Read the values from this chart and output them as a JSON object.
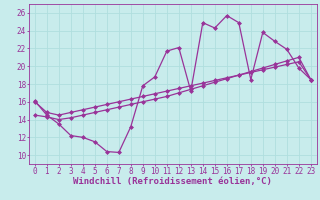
{
  "xlabel": "Windchill (Refroidissement éolien,°C)",
  "bg_color": "#c8ecec",
  "grid_color": "#b0dede",
  "line_color": "#993399",
  "marker": "D",
  "markersize": 2.0,
  "linewidth": 0.9,
  "xlim": [
    -0.5,
    23.5
  ],
  "ylim": [
    9,
    27
  ],
  "xticks": [
    0,
    1,
    2,
    3,
    4,
    5,
    6,
    7,
    8,
    9,
    10,
    11,
    12,
    13,
    14,
    15,
    16,
    17,
    18,
    19,
    20,
    21,
    22,
    23
  ],
  "yticks": [
    10,
    12,
    14,
    16,
    18,
    20,
    22,
    24,
    26
  ],
  "series1_x": [
    0,
    1,
    2,
    3,
    4,
    5,
    6,
    7,
    8,
    9,
    10,
    11,
    12,
    13,
    14,
    15,
    16,
    17,
    18,
    19,
    20,
    21,
    22,
    23
  ],
  "series1_y": [
    16.1,
    14.5,
    13.5,
    12.2,
    12.0,
    11.5,
    10.4,
    10.3,
    13.2,
    17.8,
    18.8,
    21.7,
    22.1,
    17.2,
    24.9,
    24.3,
    25.7,
    24.9,
    18.5,
    23.8,
    22.8,
    21.9,
    19.8,
    18.5
  ],
  "series2_x": [
    0,
    1,
    2,
    3,
    4,
    5,
    6,
    7,
    8,
    9,
    10,
    11,
    12,
    13,
    14,
    15,
    16,
    17,
    18,
    19,
    20,
    21,
    22,
    23
  ],
  "series2_y": [
    14.5,
    14.3,
    14.0,
    14.2,
    14.5,
    14.8,
    15.1,
    15.4,
    15.7,
    16.0,
    16.3,
    16.6,
    17.0,
    17.4,
    17.8,
    18.2,
    18.6,
    19.0,
    19.4,
    19.8,
    20.2,
    20.6,
    21.0,
    18.5
  ],
  "series3_x": [
    0,
    1,
    2,
    3,
    4,
    5,
    6,
    7,
    8,
    9,
    10,
    11,
    12,
    13,
    14,
    15,
    16,
    17,
    18,
    19,
    20,
    21,
    22,
    23
  ],
  "series3_y": [
    16.0,
    14.8,
    14.5,
    14.8,
    15.1,
    15.4,
    15.7,
    16.0,
    16.3,
    16.6,
    16.9,
    17.2,
    17.5,
    17.8,
    18.1,
    18.4,
    18.7,
    19.0,
    19.3,
    19.6,
    19.9,
    20.2,
    20.5,
    18.5
  ],
  "tick_fontsize": 5.5,
  "label_fontsize": 6.5
}
